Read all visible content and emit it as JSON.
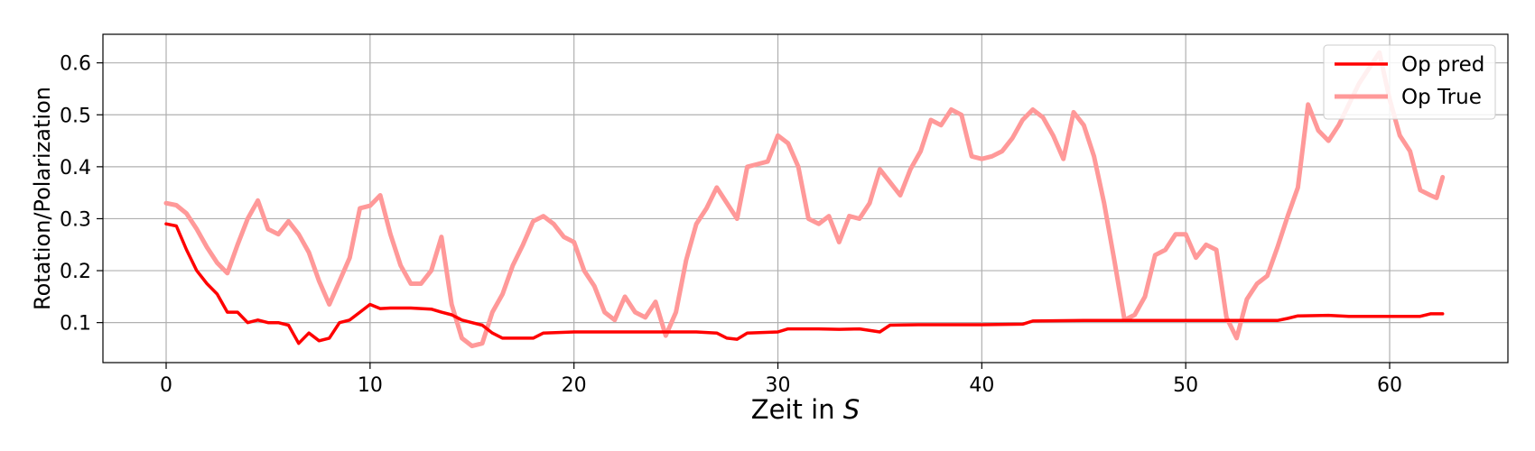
{
  "chart_data": {
    "type": "line",
    "title": "",
    "xlabel": "Zeit in",
    "xlabel_unit": "S",
    "ylabel": "Rotation/Polarization",
    "xlim": [
      -3.1,
      65.8
    ],
    "ylim": [
      0.023,
      0.655
    ],
    "xticks": [
      0,
      10,
      20,
      30,
      40,
      50,
      60
    ],
    "yticks": [
      0.1,
      0.2,
      0.3,
      0.4,
      0.5,
      0.6
    ],
    "grid": true,
    "legend_position": "top-right",
    "series": [
      {
        "name": "Op pred",
        "color": "#ff0000",
        "opacity": 1.0,
        "points": [
          [
            0,
            0.29
          ],
          [
            0.5,
            0.286
          ],
          [
            1,
            0.24
          ],
          [
            1.5,
            0.2
          ],
          [
            2,
            0.175
          ],
          [
            2.5,
            0.155
          ],
          [
            3,
            0.12
          ],
          [
            3.5,
            0.12
          ],
          [
            4,
            0.1
          ],
          [
            4.5,
            0.105
          ],
          [
            5,
            0.1
          ],
          [
            5.5,
            0.1
          ],
          [
            6,
            0.095
          ],
          [
            6.5,
            0.06
          ],
          [
            7,
            0.08
          ],
          [
            7.5,
            0.065
          ],
          [
            8,
            0.07
          ],
          [
            8.5,
            0.1
          ],
          [
            9,
            0.105
          ],
          [
            9.5,
            0.12
          ],
          [
            10,
            0.135
          ],
          [
            10.5,
            0.127
          ],
          [
            11,
            0.128
          ],
          [
            12,
            0.128
          ],
          [
            13,
            0.126
          ],
          [
            13.5,
            0.12
          ],
          [
            14,
            0.115
          ],
          [
            14.5,
            0.105
          ],
          [
            15,
            0.1
          ],
          [
            15.5,
            0.095
          ],
          [
            16,
            0.08
          ],
          [
            16.5,
            0.07
          ],
          [
            18,
            0.07
          ],
          [
            18.5,
            0.08
          ],
          [
            20,
            0.082
          ],
          [
            22,
            0.082
          ],
          [
            24,
            0.082
          ],
          [
            26,
            0.082
          ],
          [
            27,
            0.08
          ],
          [
            27.5,
            0.07
          ],
          [
            28,
            0.068
          ],
          [
            28.5,
            0.08
          ],
          [
            30,
            0.082
          ],
          [
            30.5,
            0.088
          ],
          [
            32,
            0.088
          ],
          [
            33,
            0.087
          ],
          [
            34,
            0.088
          ],
          [
            35,
            0.082
          ],
          [
            35.5,
            0.095
          ],
          [
            37,
            0.096
          ],
          [
            40,
            0.096
          ],
          [
            42,
            0.097
          ],
          [
            42.5,
            0.103
          ],
          [
            45,
            0.104
          ],
          [
            50,
            0.104
          ],
          [
            54.5,
            0.104
          ],
          [
            55,
            0.108
          ],
          [
            55.5,
            0.113
          ],
          [
            57,
            0.114
          ],
          [
            58,
            0.112
          ],
          [
            60,
            0.112
          ],
          [
            61.5,
            0.112
          ],
          [
            62,
            0.117
          ],
          [
            62.6,
            0.117
          ]
        ]
      },
      {
        "name": "Op True",
        "color": "#ff9999",
        "opacity": 1.0,
        "points": [
          [
            0,
            0.33
          ],
          [
            0.5,
            0.326
          ],
          [
            1,
            0.31
          ],
          [
            1.5,
            0.28
          ],
          [
            2,
            0.245
          ],
          [
            2.5,
            0.215
          ],
          [
            3,
            0.195
          ],
          [
            3.5,
            0.25
          ],
          [
            4,
            0.3
          ],
          [
            4.5,
            0.335
          ],
          [
            5,
            0.28
          ],
          [
            5.5,
            0.27
          ],
          [
            6,
            0.295
          ],
          [
            6.5,
            0.27
          ],
          [
            7,
            0.235
          ],
          [
            7.5,
            0.18
          ],
          [
            8,
            0.135
          ],
          [
            8.5,
            0.18
          ],
          [
            9,
            0.225
          ],
          [
            9.5,
            0.32
          ],
          [
            10,
            0.325
          ],
          [
            10.5,
            0.345
          ],
          [
            11,
            0.27
          ],
          [
            11.5,
            0.21
          ],
          [
            12,
            0.175
          ],
          [
            12.5,
            0.175
          ],
          [
            13,
            0.2
          ],
          [
            13.5,
            0.265
          ],
          [
            14,
            0.135
          ],
          [
            14.5,
            0.07
          ],
          [
            15,
            0.055
          ],
          [
            15.5,
            0.06
          ],
          [
            16,
            0.12
          ],
          [
            16.5,
            0.155
          ],
          [
            17,
            0.21
          ],
          [
            17.5,
            0.25
          ],
          [
            18,
            0.295
          ],
          [
            18.5,
            0.305
          ],
          [
            19,
            0.29
          ],
          [
            19.5,
            0.265
          ],
          [
            20,
            0.255
          ],
          [
            20.5,
            0.2
          ],
          [
            21,
            0.17
          ],
          [
            21.5,
            0.12
          ],
          [
            22,
            0.105
          ],
          [
            22.5,
            0.15
          ],
          [
            23,
            0.12
          ],
          [
            23.5,
            0.11
          ],
          [
            24,
            0.14
          ],
          [
            24.5,
            0.075
          ],
          [
            25,
            0.12
          ],
          [
            25.5,
            0.22
          ],
          [
            26,
            0.29
          ],
          [
            26.5,
            0.32
          ],
          [
            27,
            0.36
          ],
          [
            27.5,
            0.33
          ],
          [
            28,
            0.3
          ],
          [
            28.5,
            0.4
          ],
          [
            29,
            0.405
          ],
          [
            29.5,
            0.41
          ],
          [
            30,
            0.46
          ],
          [
            30.5,
            0.445
          ],
          [
            31,
            0.4
          ],
          [
            31.5,
            0.3
          ],
          [
            32,
            0.29
          ],
          [
            32.5,
            0.305
          ],
          [
            33,
            0.255
          ],
          [
            33.5,
            0.305
          ],
          [
            34,
            0.3
          ],
          [
            34.5,
            0.33
          ],
          [
            35,
            0.395
          ],
          [
            35.5,
            0.37
          ],
          [
            36,
            0.345
          ],
          [
            36.5,
            0.395
          ],
          [
            37,
            0.43
          ],
          [
            37.5,
            0.49
          ],
          [
            38,
            0.48
          ],
          [
            38.5,
            0.51
          ],
          [
            39,
            0.5
          ],
          [
            39.5,
            0.42
          ],
          [
            40,
            0.415
          ],
          [
            40.5,
            0.42
          ],
          [
            41,
            0.43
          ],
          [
            41.5,
            0.455
          ],
          [
            42,
            0.49
          ],
          [
            42.5,
            0.51
          ],
          [
            43,
            0.495
          ],
          [
            43.5,
            0.46
          ],
          [
            44,
            0.415
          ],
          [
            44.5,
            0.505
          ],
          [
            45,
            0.48
          ],
          [
            45.5,
            0.42
          ],
          [
            46,
            0.33
          ],
          [
            46.5,
            0.22
          ],
          [
            47,
            0.105
          ],
          [
            47.5,
            0.115
          ],
          [
            48,
            0.15
          ],
          [
            48.5,
            0.23
          ],
          [
            49,
            0.24
          ],
          [
            49.5,
            0.27
          ],
          [
            50,
            0.27
          ],
          [
            50.5,
            0.225
          ],
          [
            51,
            0.25
          ],
          [
            51.5,
            0.24
          ],
          [
            52,
            0.11
          ],
          [
            52.5,
            0.07
          ],
          [
            53,
            0.145
          ],
          [
            53.5,
            0.175
          ],
          [
            54,
            0.19
          ],
          [
            54.5,
            0.245
          ],
          [
            55,
            0.305
          ],
          [
            55.5,
            0.36
          ],
          [
            56,
            0.52
          ],
          [
            56.5,
            0.47
          ],
          [
            57,
            0.45
          ],
          [
            57.5,
            0.48
          ],
          [
            58,
            0.52
          ],
          [
            58.5,
            0.56
          ],
          [
            59,
            0.59
          ],
          [
            59.5,
            0.62
          ],
          [
            60,
            0.53
          ],
          [
            60.5,
            0.46
          ],
          [
            61,
            0.43
          ],
          [
            61.5,
            0.355
          ],
          [
            62,
            0.345
          ],
          [
            62.3,
            0.34
          ],
          [
            62.6,
            0.38
          ]
        ]
      }
    ]
  }
}
